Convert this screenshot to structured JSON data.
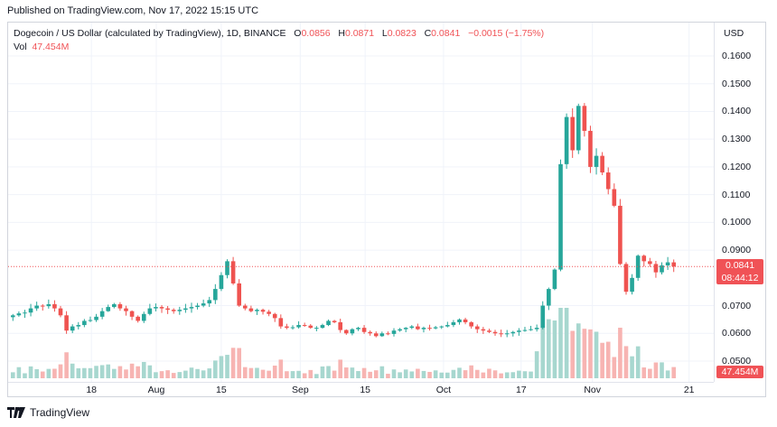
{
  "published": "Published on TradingView.com, Nov 17, 2022 15:15 UTC",
  "legend": {
    "symbol": "Dogecoin / US Dollar (calculated by TradingView), 1D, BINANCE",
    "o_label": "O",
    "o": "0.0856",
    "h_label": "H",
    "h": "0.0871",
    "l_label": "L",
    "l": "0.0823",
    "c_label": "C",
    "c": "0.0841",
    "change": "−0.0015 (−1.75%)",
    "vol_label": "Vol",
    "vol": "47.454M"
  },
  "price_axis": {
    "currency": "USD",
    "ticks": [
      "0.1600",
      "0.1500",
      "0.1400",
      "0.1300",
      "0.1200",
      "0.1100",
      "0.1000",
      "0.0900",
      "0.0700",
      "0.0600",
      "0.0500"
    ],
    "last_price": "0.0841",
    "countdown": "08:44:12",
    "last_volume": "47.454M"
  },
  "time_axis": {
    "ticks": [
      "18",
      "Aug",
      "15",
      "Sep",
      "15",
      "Oct",
      "17",
      "Nov",
      "21"
    ]
  },
  "footer": {
    "brand": "TradingView"
  },
  "colors": {
    "up": "#26a69a",
    "down": "#ef5350",
    "up_vol": "#a7d7cf",
    "down_vol": "#f7b4b2",
    "last_price_line": "#f05256"
  },
  "chart_data": {
    "type": "candlestick",
    "title": "Dogecoin / US Dollar (calculated by TradingView), 1D, BINANCE",
    "y_unit": "USD",
    "ylim": [
      0.047,
      0.162
    ],
    "x_start": "2022-07-07",
    "x_labels": [
      "18",
      "Aug",
      "15",
      "Sep",
      "15",
      "Oct",
      "17",
      "Nov",
      "21"
    ],
    "last": {
      "open": 0.0856,
      "high": 0.0871,
      "low": 0.0823,
      "close": 0.0841,
      "volume": "47.454M"
    },
    "closes": [
      0.0665,
      0.0672,
      0.0675,
      0.069,
      0.07,
      0.0698,
      0.0705,
      0.069,
      0.0665,
      0.061,
      0.0625,
      0.063,
      0.0645,
      0.0648,
      0.066,
      0.068,
      0.0695,
      0.0705,
      0.069,
      0.068,
      0.066,
      0.0645,
      0.067,
      0.069,
      0.0695,
      0.069,
      0.0685,
      0.068,
      0.0685,
      0.069,
      0.0695,
      0.07,
      0.0708,
      0.072,
      0.076,
      0.081,
      0.086,
      0.078,
      0.07,
      0.069,
      0.068,
      0.0685,
      0.0678,
      0.067,
      0.0655,
      0.0625,
      0.062,
      0.0622,
      0.063,
      0.0628,
      0.062,
      0.062,
      0.063,
      0.0645,
      0.064,
      0.0612,
      0.06,
      0.0615,
      0.062,
      0.0605,
      0.06,
      0.059,
      0.06,
      0.0598,
      0.061,
      0.0615,
      0.062,
      0.0625,
      0.0615,
      0.062,
      0.0618,
      0.0622,
      0.0625,
      0.063,
      0.064,
      0.065,
      0.064,
      0.0625,
      0.0615,
      0.061,
      0.0605,
      0.06,
      0.0598,
      0.06,
      0.0605,
      0.061,
      0.0612,
      0.0615,
      0.062,
      0.07,
      0.076,
      0.083,
      0.121,
      0.138,
      0.126,
      0.142,
      0.133,
      0.12,
      0.124,
      0.118,
      0.112,
      0.106,
      0.085,
      0.075,
      0.08,
      0.088,
      0.086,
      0.085,
      0.082,
      0.0845,
      0.0856,
      0.0841
    ]
  }
}
